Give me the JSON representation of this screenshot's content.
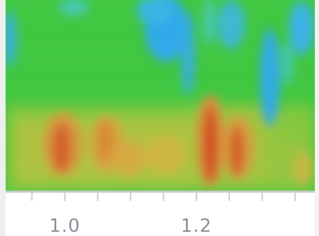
{
  "chart_data": {
    "type": "heatmap",
    "title": "",
    "xlabel": "",
    "ylabel": "",
    "xlim": [
      0.91,
      1.38
    ],
    "x_ticks": [
      {
        "value": 0.95,
        "label": ""
      },
      {
        "value": 1.0,
        "label": "1.0"
      },
      {
        "value": 1.05,
        "label": ""
      },
      {
        "value": 1.1,
        "label": ""
      },
      {
        "value": 1.15,
        "label": ""
      },
      {
        "value": 1.2,
        "label": "1.2"
      },
      {
        "value": 1.25,
        "label": ""
      },
      {
        "value": 1.3,
        "label": ""
      },
      {
        "value": 1.35,
        "label": ""
      }
    ],
    "colormap": [
      "#2fa8e8",
      "#46c8d0",
      "#3dc63e",
      "#7cc83a",
      "#c4bf3e",
      "#d8a33c",
      "#d9652a",
      "#cf4a1c"
    ],
    "background_color": "#3dc63e",
    "axis_color": "#c9ced6"
  }
}
